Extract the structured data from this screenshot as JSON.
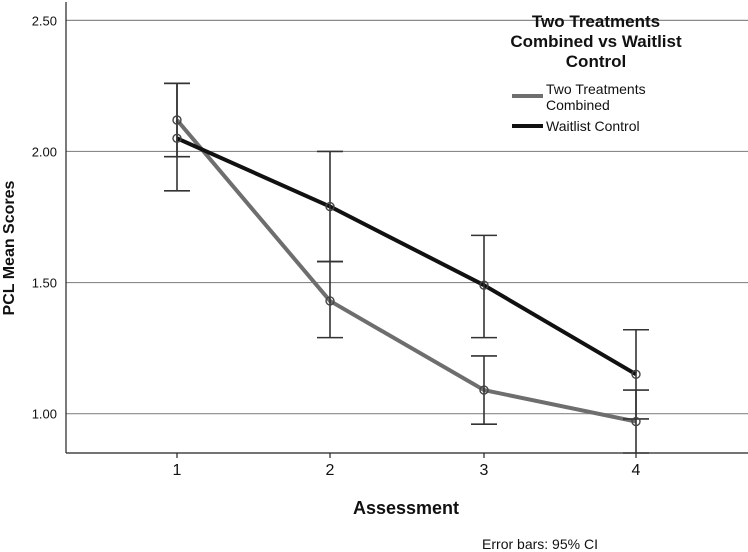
{
  "chart_data": {
    "type": "line",
    "title": "",
    "xlabel": "Assessment",
    "ylabel": "PCL Mean Scores",
    "x": [
      1,
      2,
      3,
      4
    ],
    "x_tick_labels": [
      "1",
      "2",
      "3",
      "4"
    ],
    "ylim": [
      0.85,
      2.57
    ],
    "y_ticks": [
      1.0,
      1.5,
      2.0,
      2.5
    ],
    "y_tick_labels": [
      "1.00",
      "1.50",
      "2.00",
      "2.50"
    ],
    "grid": "horizontal",
    "legend": {
      "title_lines": [
        "Two Treatments",
        "Combined vs Waitlist",
        "Control"
      ],
      "placement": "top-right"
    },
    "series": [
      {
        "name": "Two Treatments Combined",
        "name_lines": [
          "Two Treatments",
          "Combined"
        ],
        "color": "#6e6e6e",
        "values": [
          2.12,
          1.43,
          1.09,
          0.97
        ],
        "ci_lower": [
          1.98,
          1.29,
          0.96,
          0.85
        ],
        "ci_upper": [
          2.26,
          1.58,
          1.22,
          1.09
        ]
      },
      {
        "name": "Waitlist Control",
        "name_lines": [
          "Waitlist Control"
        ],
        "color": "#111111",
        "values": [
          2.05,
          1.79,
          1.49,
          1.15
        ],
        "ci_lower": [
          1.85,
          1.58,
          1.29,
          0.98
        ],
        "ci_upper": [
          2.26,
          2.0,
          1.68,
          1.32
        ]
      }
    ],
    "footnote": "Error bars: 95% CI"
  }
}
